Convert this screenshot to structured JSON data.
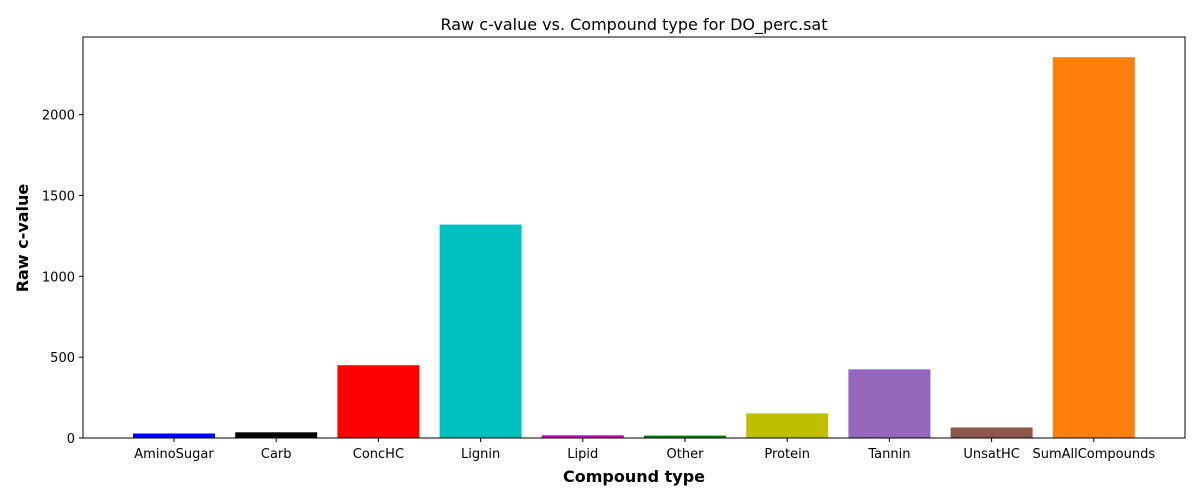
{
  "chart_data": {
    "type": "bar",
    "title": "Raw c-value vs. Compound type for DO_perc.sat",
    "xlabel": "Compound type",
    "ylabel": "Raw c-value",
    "categories": [
      "AminoSugar",
      "Carb",
      "ConcHC",
      "Lignin",
      "Lipid",
      "Other",
      "Protein",
      "Tannin",
      "UnsatHC",
      "SumAllCompounds"
    ],
    "values": [
      28,
      35,
      450,
      1320,
      17,
      15,
      152,
      425,
      65,
      2355
    ],
    "colors": [
      "#0000ff",
      "#000000",
      "#ff0000",
      "#00bfbf",
      "#bf00bf",
      "#008000",
      "#bfbf00",
      "#9467bd",
      "#8c564b",
      "#ff7f0e"
    ],
    "ylim": [
      0,
      2480
    ],
    "yticks": [
      0,
      500,
      1000,
      1500,
      2000
    ],
    "grid": false,
    "legend": "none"
  }
}
